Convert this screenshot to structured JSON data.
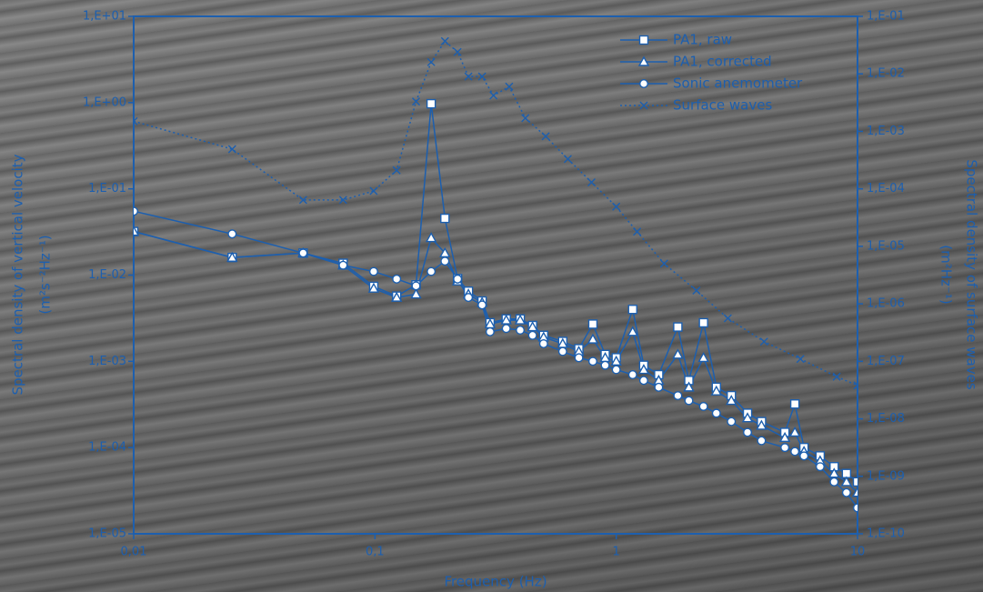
{
  "chart_data": {
    "type": "line",
    "xlabel": "Frequency (Hz)",
    "ylabel": "Spectral density of vertical velocity",
    "ylabel_units": "(m²s⁻²Hz⁻¹)",
    "y2label": "Spectral density of surface waves",
    "y2label_units": "(m²Hz⁻¹)",
    "xscale": "log",
    "yscale": "log",
    "y2scale": "log",
    "xlim": [
      0.01,
      10
    ],
    "xticks": [
      {
        "value": 0.01,
        "label": "0,01"
      },
      {
        "value": 0.1,
        "label": "0,1"
      },
      1,
      10
    ],
    "ylim": [
      1e-05,
      10
    ],
    "yticks": [
      {
        "value": 1e-05,
        "label": "1,E-05"
      },
      {
        "value": 0.0001,
        "label": "1,E-04"
      },
      {
        "value": 0.001,
        "label": "1,E-03"
      },
      {
        "value": 0.01,
        "label": "1,E-02"
      },
      {
        "value": 0.1,
        "label": "1,E-01"
      },
      {
        "value": 1,
        "label": "1,E+00"
      },
      {
        "value": 10,
        "label": "1,E+01"
      }
    ],
    "y2lim": [
      1e-10,
      0.1
    ],
    "y2ticks": [
      {
        "value": 1e-10,
        "label": "1,E-10"
      },
      {
        "value": 1e-09,
        "label": "1,E-09"
      },
      {
        "value": 1e-08,
        "label": "1,E-08"
      },
      {
        "value": 1e-07,
        "label": "1,E-07"
      },
      {
        "value": 1e-06,
        "label": "1,E-06"
      },
      {
        "value": 1e-05,
        "label": "1,E-05"
      },
      {
        "value": 0.0001,
        "label": "1,E-04"
      },
      {
        "value": 0.001,
        "label": "1,E-03"
      },
      {
        "value": 0.01,
        "label": "1,E-02"
      },
      {
        "value": 0.1,
        "label": "1,E-01"
      }
    ],
    "legend": "top-right",
    "series": [
      {
        "name": "PA1, raw",
        "color": "#1d5fae",
        "marker": "square",
        "line": "solid",
        "x": [
          0.01,
          0.0256,
          0.0504,
          0.0738,
          0.0988,
          0.123,
          0.148,
          0.171,
          0.195,
          0.22,
          0.244,
          0.278,
          0.3,
          0.35,
          0.4,
          0.45,
          0.5,
          0.6,
          0.7,
          0.8,
          0.9,
          1.0,
          1.17,
          1.3,
          1.5,
          1.8,
          2.0,
          2.3,
          2.6,
          3,
          3.5,
          4,
          5,
          5.5,
          6,
          7,
          8,
          9,
          10
        ],
        "values": [
          0.032,
          0.016,
          0.018,
          0.0137,
          0.0074,
          0.0057,
          0.0077,
          0.97,
          0.0455,
          0.0091,
          0.0065,
          0.005,
          0.0028,
          0.0031,
          0.0031,
          0.0026,
          0.002,
          0.0017,
          0.0014,
          0.0027,
          0.0012,
          0.0011,
          0.004,
          0.0009,
          0.0007,
          0.0025,
          0.0006,
          0.0028,
          0.0005,
          0.0004,
          0.00025,
          0.0002,
          0.00015,
          0.00032,
          0.0001,
          8e-05,
          6e-05,
          5e-05,
          4e-05
        ]
      },
      {
        "name": "PA1, corrected",
        "color": "#1d5fae",
        "marker": "triangle",
        "line": "solid",
        "x": [
          0.01,
          0.0256,
          0.0504,
          0.0738,
          0.0988,
          0.123,
          0.148,
          0.171,
          0.195,
          0.22,
          0.244,
          0.278,
          0.3,
          0.35,
          0.4,
          0.45,
          0.5,
          0.6,
          0.7,
          0.8,
          0.9,
          1.0,
          1.17,
          1.3,
          1.5,
          1.8,
          2.0,
          2.3,
          2.6,
          3,
          3.5,
          4,
          5,
          5.5,
          6,
          7,
          8,
          9,
          10
        ],
        "values": [
          0.032,
          0.016,
          0.018,
          0.013,
          0.007,
          0.0055,
          0.006,
          0.027,
          0.018,
          0.0085,
          0.006,
          0.0048,
          0.0027,
          0.003,
          0.003,
          0.0025,
          0.0019,
          0.0016,
          0.0013,
          0.0018,
          0.0011,
          0.001,
          0.0022,
          0.0008,
          0.0006,
          0.0012,
          0.0005,
          0.0011,
          0.00045,
          0.00035,
          0.00022,
          0.00018,
          0.00013,
          0.00015,
          9e-05,
          7e-05,
          5e-05,
          4e-05,
          3e-05
        ]
      },
      {
        "name": "Sonic anemometer",
        "color": "#1d5fae",
        "marker": "circle",
        "line": "solid",
        "x": [
          0.01,
          0.0256,
          0.0504,
          0.0738,
          0.0988,
          0.123,
          0.148,
          0.171,
          0.195,
          0.22,
          0.244,
          0.278,
          0.3,
          0.35,
          0.4,
          0.45,
          0.5,
          0.6,
          0.7,
          0.8,
          0.9,
          1.0,
          1.17,
          1.3,
          1.5,
          1.8,
          2.0,
          2.3,
          2.6,
          3,
          3.5,
          4,
          5,
          5.5,
          6,
          7,
          8,
          9,
          10
        ],
        "values": [
          0.055,
          0.03,
          0.018,
          0.013,
          0.011,
          0.009,
          0.0075,
          0.011,
          0.0145,
          0.009,
          0.0055,
          0.0045,
          0.0022,
          0.0024,
          0.0023,
          0.002,
          0.0016,
          0.0013,
          0.0011,
          0.001,
          0.0009,
          0.0008,
          0.0007,
          0.0006,
          0.0005,
          0.0004,
          0.00035,
          0.0003,
          0.00025,
          0.0002,
          0.00015,
          0.00012,
          0.0001,
          9e-05,
          8e-05,
          6e-05,
          4e-05,
          3e-05,
          2e-05
        ]
      },
      {
        "name": "Surface waves",
        "color": "#1d5fae",
        "marker": "x",
        "line": "dotted",
        "axis": "y2",
        "x": [
          0.01,
          0.0256,
          0.0504,
          0.0738,
          0.0988,
          0.123,
          0.148,
          0.171,
          0.195,
          0.22,
          0.244,
          0.278,
          0.31,
          0.36,
          0.42,
          0.51,
          0.63,
          0.79,
          1.0,
          1.22,
          1.58,
          2.15,
          2.9,
          4.1,
          5.8,
          8.2,
          10
        ],
        "values": [
          0.0015,
          0.00049,
          6.4e-05,
          6.4e-05,
          9.2e-05,
          0.00021,
          0.0033,
          0.016,
          0.037,
          0.024,
          0.009,
          0.009,
          0.0042,
          0.006,
          0.0017,
          0.00082,
          0.00033,
          0.00013,
          4.9e-05,
          1.8e-05,
          5e-06,
          1.7e-06,
          5.6e-07,
          2.2e-07,
          1.1e-07,
          5.4e-08,
          3.8e-08
        ]
      }
    ]
  }
}
